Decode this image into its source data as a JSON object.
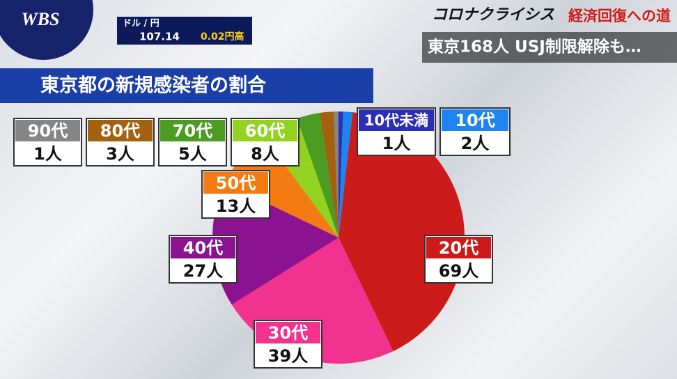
{
  "header": {
    "logo": "WBS",
    "fx_label": "ドル / 円",
    "fx_rate": "107.14",
    "fx_change": "0.02円高",
    "series_title": "コロナクライシス",
    "series_subtitle": "経済回復への道",
    "headline": "東京168人 USJ制限解除も…"
  },
  "chart_data": {
    "type": "pie",
    "title": "東京都の新規感染者の割合",
    "categories": [
      "10代未満",
      "10代",
      "20代",
      "30代",
      "40代",
      "50代",
      "60代",
      "70代",
      "80代",
      "90代"
    ],
    "values": [
      1,
      2,
      69,
      39,
      27,
      13,
      8,
      5,
      3,
      1
    ],
    "value_labels": [
      "1人",
      "2人",
      "69人",
      "39人",
      "27人",
      "13人",
      "8人",
      "5人",
      "3人",
      "1人"
    ],
    "colors": [
      "#2b2fb5",
      "#1e84f2",
      "#cc1b1b",
      "#f2328f",
      "#8b1291",
      "#f47b12",
      "#94d222",
      "#4c9c22",
      "#a2620f",
      "#858585"
    ]
  }
}
